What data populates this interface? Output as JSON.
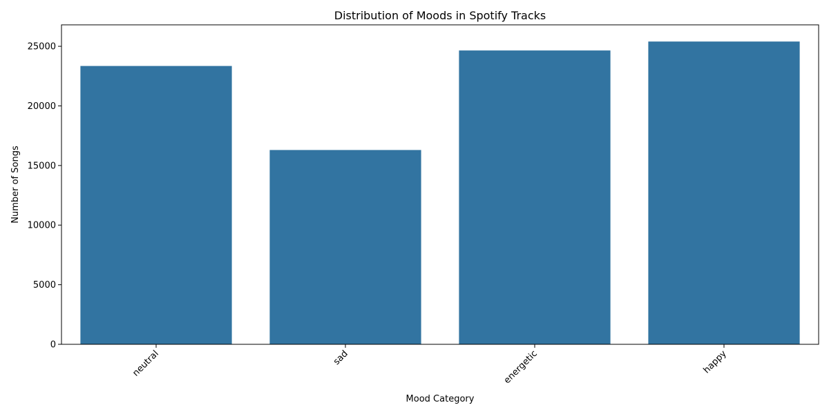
{
  "chart_data": {
    "type": "bar",
    "title": "Distribution of Moods in Spotify Tracks",
    "xlabel": "Mood Category",
    "ylabel": "Number of Songs",
    "categories": [
      "neutral",
      "sad",
      "energetic",
      "happy"
    ],
    "values": [
      23350,
      16300,
      24650,
      25400
    ],
    "ylim": [
      0,
      26800
    ],
    "yticks": [
      0,
      5000,
      10000,
      15000,
      20000,
      25000
    ],
    "bar_color": "#3274a1",
    "grid": false,
    "x_tick_rotation": 45
  }
}
